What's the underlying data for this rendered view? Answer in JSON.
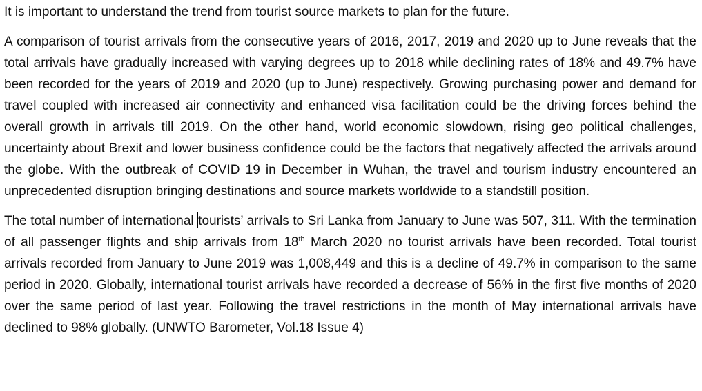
{
  "document": {
    "paragraph_1": "It is important to understand the trend from tourist source markets to plan for the future.",
    "paragraph_2": "A comparison of tourist arrivals from the consecutive years of 2016, 2017, 2019 and 2020 up to June reveals that the total arrivals have gradually increased with varying degrees up to 2018 while declining rates of 18% and 49.7% have been recorded for the years of 2019 and 2020 (up to June) respectively. Growing purchasing power and demand for travel coupled with increased air connectivity and enhanced visa facilitation could be the driving forces behind the overall growth in arrivals till 2019. On the other hand, world economic slowdown, rising geo political challenges, uncertainty about Brexit and lower business confidence could be the factors that negatively affected the arrivals around the globe. With the outbreak of COVID 19 in December in Wuhan, the travel and tourism industry encountered an unprecedented disruption bringing destinations and source markets worldwide to a standstill position.",
    "paragraph_3": {
      "before_cursor": "The total number of international ",
      "after_cursor": "tourists’ arrivals to Sri Lanka from January to June was 507, 311. With the termination of all passenger flights and ship arrivals from 18",
      "superscript": "th",
      "after_superscript": " March 2020 no tourist arrivals have been recorded. Total tourist arrivals recorded from January to June 2019 was 1,008,449 and this is a decline of 49.7% in comparison to the same period in 2020. Globally, international tourist arrivals have recorded a decrease of 56% in the first five months of 2020 over the same period of last year. Following the travel restrictions in the month of May international arrivals have declined to 98% globally. (UNWTO Barometer, Vol.18 Issue 4)"
    }
  }
}
